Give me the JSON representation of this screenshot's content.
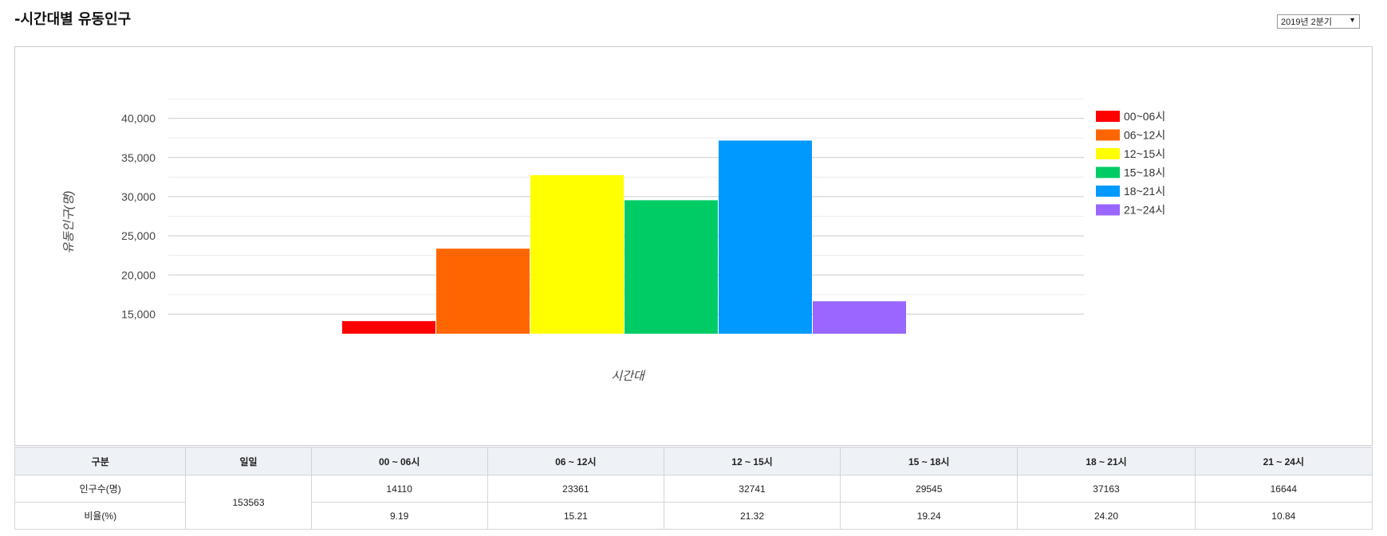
{
  "header": {
    "title": "-시간대별 유동인구",
    "period_select": {
      "selected": "2019년 2분기",
      "arrow": "▼"
    }
  },
  "colors": {
    "00~06시": "#ff0000",
    "06~12시": "#ff6600",
    "12~15시": "#ffff00",
    "15~18시": "#00cc66",
    "18~21시": "#0099ff",
    "21~24시": "#9966ff"
  },
  "chart_data": {
    "type": "bar",
    "xlabel": "시간대",
    "ylabel": "유동인구(명)",
    "ylim": [
      12500,
      42500
    ],
    "yticks": [
      15000,
      20000,
      25000,
      30000,
      35000,
      40000
    ],
    "ytick_labels": [
      "15,000",
      "20,000",
      "25,000",
      "30,000",
      "35,000",
      "40,000"
    ],
    "grid": true,
    "legend_position": "right",
    "series": [
      {
        "name": "00~06시",
        "values": [
          14110
        ]
      },
      {
        "name": "06~12시",
        "values": [
          23361
        ]
      },
      {
        "name": "12~15시",
        "values": [
          32741
        ]
      },
      {
        "name": "15~18시",
        "values": [
          29545
        ]
      },
      {
        "name": "18~21시",
        "values": [
          37163
        ]
      },
      {
        "name": "21~24시",
        "values": [
          16644
        ]
      }
    ]
  },
  "table": {
    "headers": [
      "구분",
      "일일",
      "00 ~ 06시",
      "06 ~ 12시",
      "12 ~ 15시",
      "15 ~ 18시",
      "18 ~ 21시",
      "21 ~ 24시"
    ],
    "daily_total": "153563",
    "rows": [
      {
        "label": "인구수(명)",
        "values": [
          "14110",
          "23361",
          "32741",
          "29545",
          "37163",
          "16644"
        ]
      },
      {
        "label": "비율(%)",
        "values": [
          "9.19",
          "15.21",
          "21.32",
          "19.24",
          "24.20",
          "10.84"
        ]
      }
    ]
  }
}
